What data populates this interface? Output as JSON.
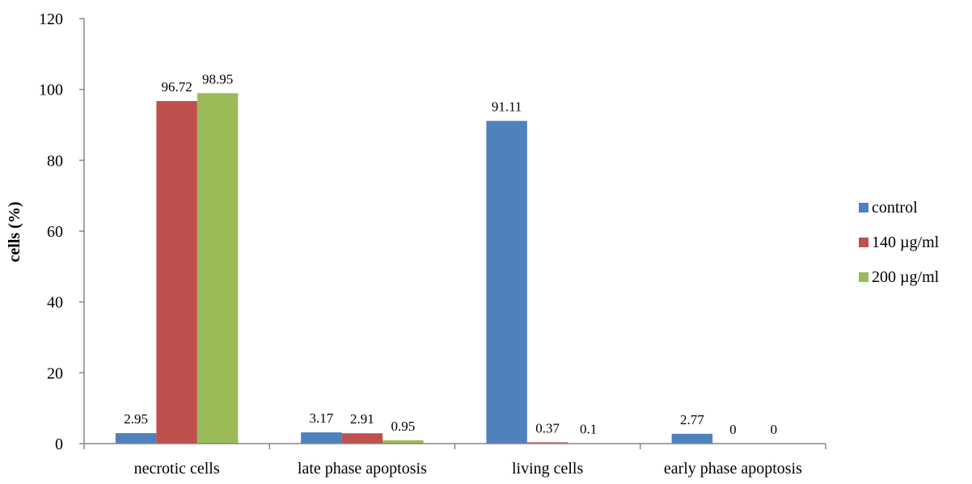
{
  "chart_data": {
    "type": "bar",
    "title": "",
    "xlabel": "",
    "ylabel": "cells (%)",
    "ylim": [
      0,
      120
    ],
    "yticks": [
      0,
      20,
      40,
      60,
      80,
      100,
      120
    ],
    "grid": false,
    "legend_position": "right",
    "categories": [
      "necrotic cells",
      "late phase apoptosis",
      "living cells",
      "early phase apoptosis"
    ],
    "series": [
      {
        "name": "control",
        "color": "#4F81BD",
        "values": [
          2.95,
          3.17,
          91.11,
          2.77
        ],
        "labels": [
          "2.95",
          "3.17",
          "91.11",
          "2.77"
        ]
      },
      {
        "name": "140 µg/ml",
        "color": "#C0504D",
        "values": [
          96.72,
          2.91,
          0.37,
          0
        ],
        "labels": [
          "96.72",
          "2.91",
          "0.37",
          "0"
        ]
      },
      {
        "name": "200 µg/ml",
        "color": "#9BBB59",
        "values": [
          98.95,
          0.95,
          0.1,
          0
        ],
        "labels": [
          "98.95",
          "0.95",
          "0.1",
          "0"
        ]
      }
    ]
  }
}
